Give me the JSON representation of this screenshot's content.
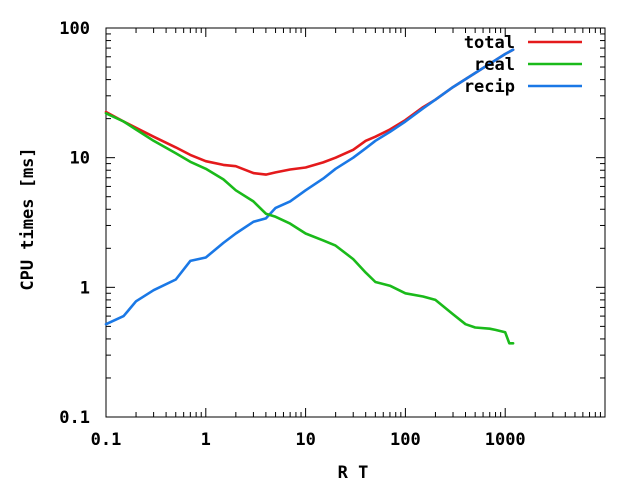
{
  "chart_data": {
    "type": "line",
    "title": "",
    "xlabel": "R T",
    "ylabel": "CPU times [ms]",
    "x_scale": "log",
    "y_scale": "log",
    "xlim": [
      0.1,
      10000
    ],
    "ylim": [
      0.1,
      100
    ],
    "x_ticks": [
      0.1,
      1,
      10,
      100,
      1000,
      10000
    ],
    "x_tick_labels": [
      "0.1",
      "1",
      "10",
      "100",
      "1000",
      ""
    ],
    "y_ticks": [
      0.1,
      1,
      10,
      100
    ],
    "y_tick_labels": [
      "0.1",
      "1",
      "10",
      "100"
    ],
    "grid": false,
    "legend_position": "top-right",
    "series": [
      {
        "name": "total",
        "color": "#e41a1c",
        "points": [
          [
            0.1,
            22.5
          ],
          [
            0.15,
            19
          ],
          [
            0.2,
            17
          ],
          [
            0.3,
            14.5
          ],
          [
            0.5,
            12
          ],
          [
            0.7,
            10.5
          ],
          [
            1,
            9.4
          ],
          [
            1.5,
            8.8
          ],
          [
            2,
            8.6
          ],
          [
            3,
            7.6
          ],
          [
            4,
            7.4
          ],
          [
            5,
            7.7
          ],
          [
            7,
            8.1
          ],
          [
            10,
            8.4
          ],
          [
            15,
            9.2
          ],
          [
            20,
            10
          ],
          [
            30,
            11.5
          ],
          [
            40,
            13.5
          ],
          [
            50,
            14.5
          ],
          [
            70,
            16.5
          ],
          [
            100,
            19.5
          ],
          [
            150,
            24.5
          ],
          [
            200,
            28
          ],
          [
            300,
            35
          ],
          [
            500,
            45
          ],
          [
            700,
            53
          ],
          [
            1000,
            63
          ],
          [
            1200,
            68
          ]
        ]
      },
      {
        "name": "real",
        "color": "#1aba1a",
        "points": [
          [
            0.1,
            22
          ],
          [
            0.15,
            19
          ],
          [
            0.2,
            16.5
          ],
          [
            0.3,
            13.5
          ],
          [
            0.5,
            10.8
          ],
          [
            0.7,
            9.3
          ],
          [
            1,
            8.2
          ],
          [
            1.5,
            6.8
          ],
          [
            2,
            5.6
          ],
          [
            3,
            4.6
          ],
          [
            4,
            3.7
          ],
          [
            5,
            3.5
          ],
          [
            7,
            3.1
          ],
          [
            10,
            2.6
          ],
          [
            15,
            2.3
          ],
          [
            20,
            2.1
          ],
          [
            30,
            1.65
          ],
          [
            40,
            1.3
          ],
          [
            50,
            1.1
          ],
          [
            70,
            1.03
          ],
          [
            100,
            0.9
          ],
          [
            150,
            0.85
          ],
          [
            200,
            0.8
          ],
          [
            300,
            0.62
          ],
          [
            400,
            0.52
          ],
          [
            500,
            0.49
          ],
          [
            700,
            0.48
          ],
          [
            800,
            0.47
          ],
          [
            1000,
            0.45
          ],
          [
            1100,
            0.37
          ],
          [
            1200,
            0.37
          ]
        ]
      },
      {
        "name": "recip",
        "color": "#1a78e6",
        "points": [
          [
            0.1,
            0.52
          ],
          [
            0.15,
            0.6
          ],
          [
            0.2,
            0.78
          ],
          [
            0.3,
            0.95
          ],
          [
            0.5,
            1.15
          ],
          [
            0.7,
            1.6
          ],
          [
            1,
            1.7
          ],
          [
            1.5,
            2.2
          ],
          [
            2,
            2.6
          ],
          [
            3,
            3.2
          ],
          [
            4,
            3.4
          ],
          [
            5,
            4.1
          ],
          [
            7,
            4.6
          ],
          [
            10,
            5.6
          ],
          [
            15,
            6.9
          ],
          [
            20,
            8.2
          ],
          [
            30,
            10
          ],
          [
            40,
            11.8
          ],
          [
            50,
            13.5
          ],
          [
            70,
            15.8
          ],
          [
            100,
            19
          ],
          [
            150,
            24
          ],
          [
            200,
            28
          ],
          [
            300,
            35
          ],
          [
            500,
            45
          ],
          [
            700,
            53
          ],
          [
            1000,
            63
          ],
          [
            1200,
            68
          ]
        ]
      }
    ]
  }
}
